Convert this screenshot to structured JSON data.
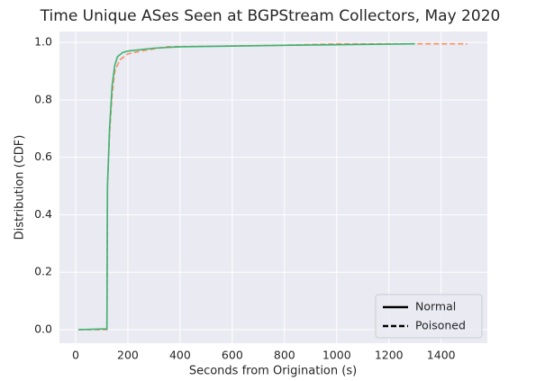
{
  "chart_data": {
    "type": "line",
    "title": "Time Unique ASes Seen at BGPStream Collectors, May 2020",
    "x_label": "Seconds from Origination (s)",
    "y_label": "Distribution (CDF)",
    "xlim": [
      -62,
      1577
    ],
    "ylim": [
      -0.047,
      1.038
    ],
    "xticks": [
      0,
      200,
      400,
      600,
      800,
      1000,
      1200,
      1400
    ],
    "yticks": [
      {
        "value": 0,
        "label": "0.0"
      },
      {
        "value": 0.2,
        "label": "0.2"
      },
      {
        "value": 0.4,
        "label": "0.4"
      },
      {
        "value": 0.6,
        "label": "0.6"
      },
      {
        "value": 0.8,
        "label": "0.8"
      },
      {
        "value": 1,
        "label": "1.0"
      }
    ],
    "grid": true,
    "legend": "lower right",
    "legend_color": "#000000",
    "series": [
      {
        "name": "Poisoned",
        "color": "#fc8d62",
        "dashed": true,
        "x": [
          10,
          120,
          122,
          130,
          140,
          150,
          170,
          200,
          250,
          350,
          800,
          1000,
          1500
        ],
        "values": [
          0,
          0,
          0.5,
          0.68,
          0.82,
          0.9,
          0.94,
          0.96,
          0.97,
          0.985,
          0.99,
          0.995,
          0.995
        ]
      },
      {
        "name": "Normal",
        "color": "#3cb371",
        "dashed": false,
        "x": [
          10,
          120,
          122,
          130,
          140,
          150,
          160,
          180,
          200,
          300,
          400,
          800,
          1300
        ],
        "values": [
          0,
          0.003,
          0.5,
          0.7,
          0.85,
          0.92,
          0.95,
          0.965,
          0.97,
          0.98,
          0.985,
          0.99,
          0.995
        ]
      }
    ]
  }
}
